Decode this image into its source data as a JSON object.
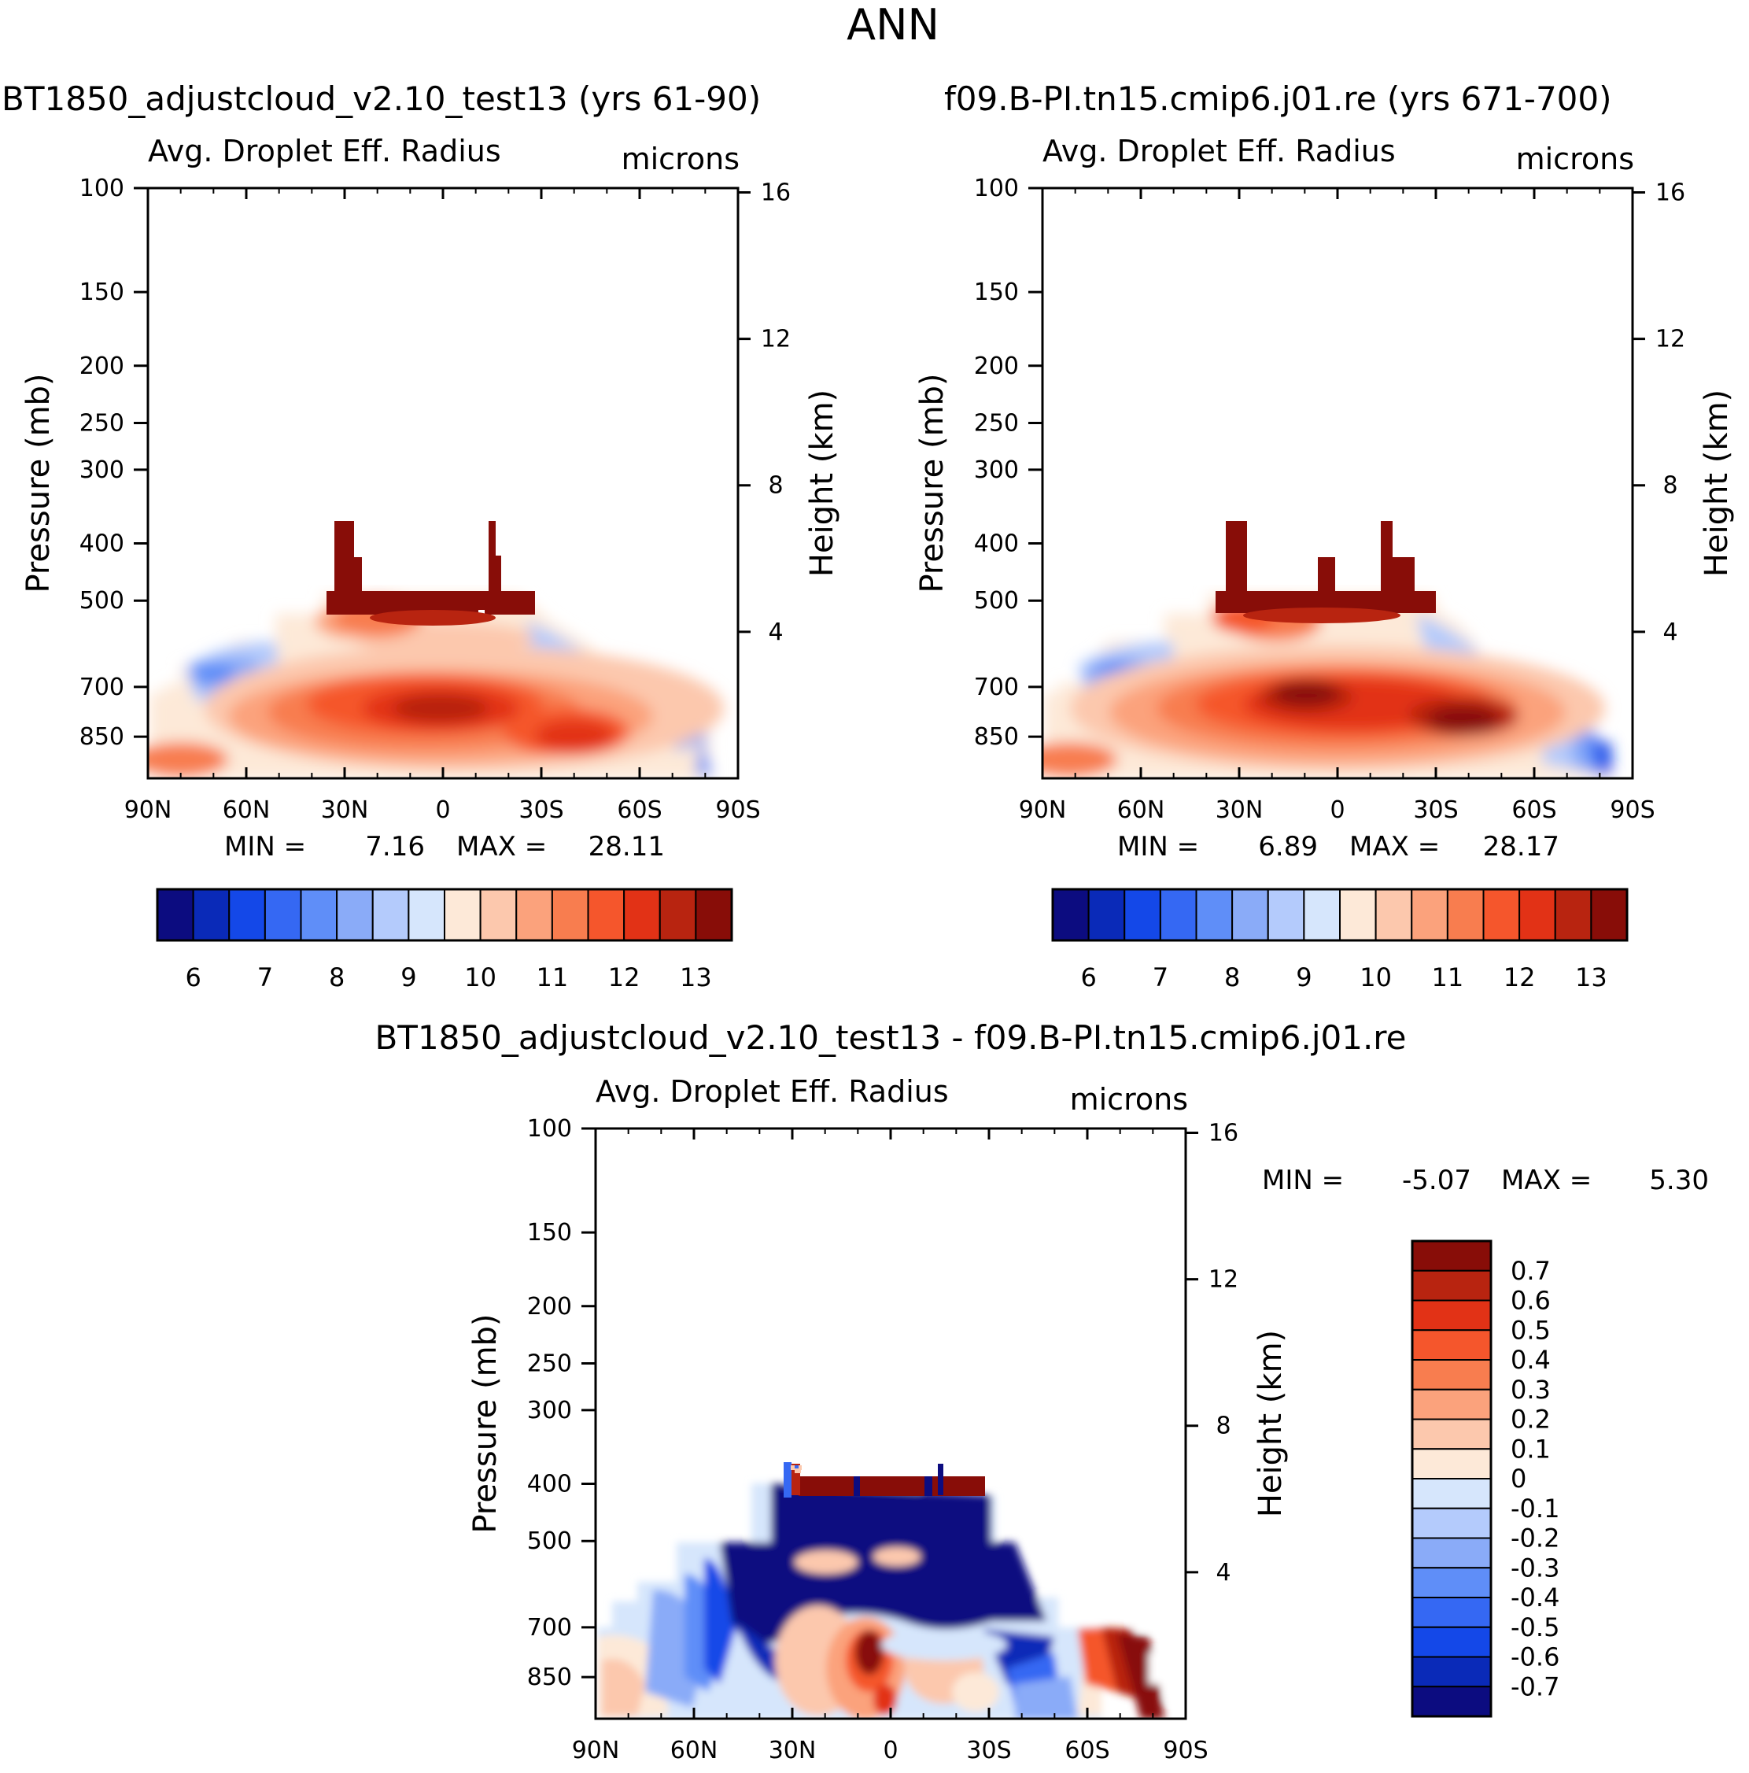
{
  "figure": {
    "title": "ANN",
    "units": "microns",
    "variable": "Avg. Droplet Eff. Radius"
  },
  "colors": {
    "abs_palette": [
      "#0c0c80",
      "#0a2ab8",
      "#1448e8",
      "#3568f3",
      "#5f8ef8",
      "#8aabf8",
      "#b4cbfc",
      "#d6e6fc",
      "#fde9d8",
      "#fcc8ad",
      "#fba27c",
      "#f87d4f",
      "#f5562c",
      "#e23216",
      "#b82410",
      "#880d08"
    ],
    "diff_palette": [
      "#0c0c80",
      "#0a2ab8",
      "#1448e8",
      "#3568f3",
      "#5f8ef8",
      "#8aabf8",
      "#b4cbfc",
      "#d6e6fc",
      "#fde9d8",
      "#fcc8ad",
      "#fba27c",
      "#f87d4f",
      "#f5562c",
      "#e23216",
      "#b82410",
      "#880d08"
    ]
  },
  "chart_data": [
    {
      "type": "heatmap",
      "id": "panel_left",
      "title": "BT1850_adjustcloud_v2.10_test13 (yrs 61-90)",
      "subtitle": "Avg. Droplet Eff. Radius",
      "units": "microns",
      "xlabel": "",
      "ylabel": "Pressure (mb)",
      "y2label": "Height (km)",
      "x_ticks": [
        "90N",
        "60N",
        "30N",
        "0",
        "30S",
        "60S",
        "90S"
      ],
      "x_values": [
        90,
        60,
        30,
        0,
        -30,
        -60,
        -90
      ],
      "y_ticks": [
        100,
        150,
        200,
        250,
        300,
        400,
        500,
        700,
        850
      ],
      "y2_ticks": [
        16,
        12,
        8,
        4
      ],
      "min_label": "MIN =",
      "min_value": "7.16",
      "max_label": "MAX =",
      "max_value": "28.11",
      "colorbar": {
        "orientation": "horizontal",
        "labels": [
          "6",
          "7",
          "8",
          "9",
          "10",
          "11",
          "12",
          "13"
        ]
      }
    },
    {
      "type": "heatmap",
      "id": "panel_right",
      "title": "f09.B-PI.tn15.cmip6.j01.re (yrs 671-700)",
      "subtitle": "Avg. Droplet Eff. Radius",
      "units": "microns",
      "ylabel": "Pressure (mb)",
      "y2label": "Height (km)",
      "x_ticks": [
        "90N",
        "60N",
        "30N",
        "0",
        "30S",
        "60S",
        "90S"
      ],
      "x_values": [
        90,
        60,
        30,
        0,
        -30,
        -60,
        -90
      ],
      "y_ticks": [
        100,
        150,
        200,
        250,
        300,
        400,
        500,
        700,
        850
      ],
      "y2_ticks": [
        16,
        12,
        8,
        4
      ],
      "min_label": "MIN =",
      "min_value": "6.89",
      "max_label": "MAX =",
      "max_value": "28.17",
      "colorbar": {
        "orientation": "horizontal",
        "labels": [
          "6",
          "7",
          "8",
          "9",
          "10",
          "11",
          "12",
          "13"
        ]
      }
    },
    {
      "type": "heatmap",
      "id": "panel_diff",
      "title": "BT1850_adjustcloud_v2.10_test13 - f09.B-PI.tn15.cmip6.j01.re",
      "subtitle": "Avg. Droplet Eff. Radius",
      "units": "microns",
      "ylabel": "Pressure (mb)",
      "y2label": "Height (km)",
      "x_ticks": [
        "90N",
        "60N",
        "30N",
        "0",
        "30S",
        "60S",
        "90S"
      ],
      "x_values": [
        90,
        60,
        30,
        0,
        -30,
        -60,
        -90
      ],
      "y_ticks": [
        100,
        150,
        200,
        250,
        300,
        400,
        500,
        700,
        850
      ],
      "y2_ticks": [
        16,
        12,
        8,
        4
      ],
      "min_label": "MIN =",
      "min_value": "-5.07",
      "max_label": "MAX =",
      "max_value": "5.30",
      "colorbar": {
        "orientation": "vertical",
        "labels": [
          "0.7",
          "0.6",
          "0.5",
          "0.4",
          "0.3",
          "0.2",
          "0.1",
          "0",
          "-0.1",
          "-0.2",
          "-0.3",
          "-0.4",
          "-0.5",
          "-0.6",
          "-0.7"
        ]
      }
    }
  ]
}
